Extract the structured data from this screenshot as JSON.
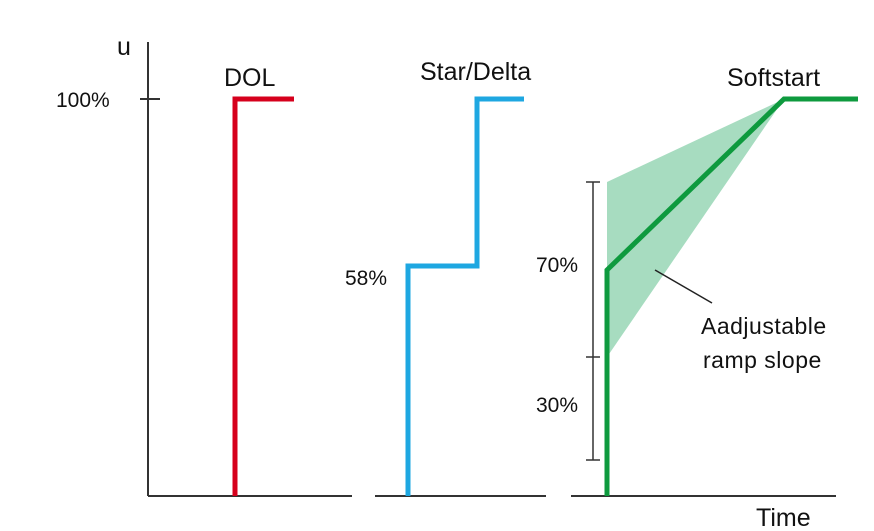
{
  "axis_label_y": "u",
  "axis_label_x": "Time",
  "tick_100": "100%",
  "dol": {
    "title": "DOL",
    "color": "#d6001c"
  },
  "star_delta": {
    "title": "Star/Delta",
    "step_label": "58%",
    "color": "#1ea7e1"
  },
  "softstart": {
    "title": "Softstart",
    "label_70": "70%",
    "label_30": "30%",
    "annotation_line1": "Aadjustable",
    "annotation_line2": "ramp slope",
    "color": "#0e9a3e",
    "band_color": "#a7dcc0"
  }
}
